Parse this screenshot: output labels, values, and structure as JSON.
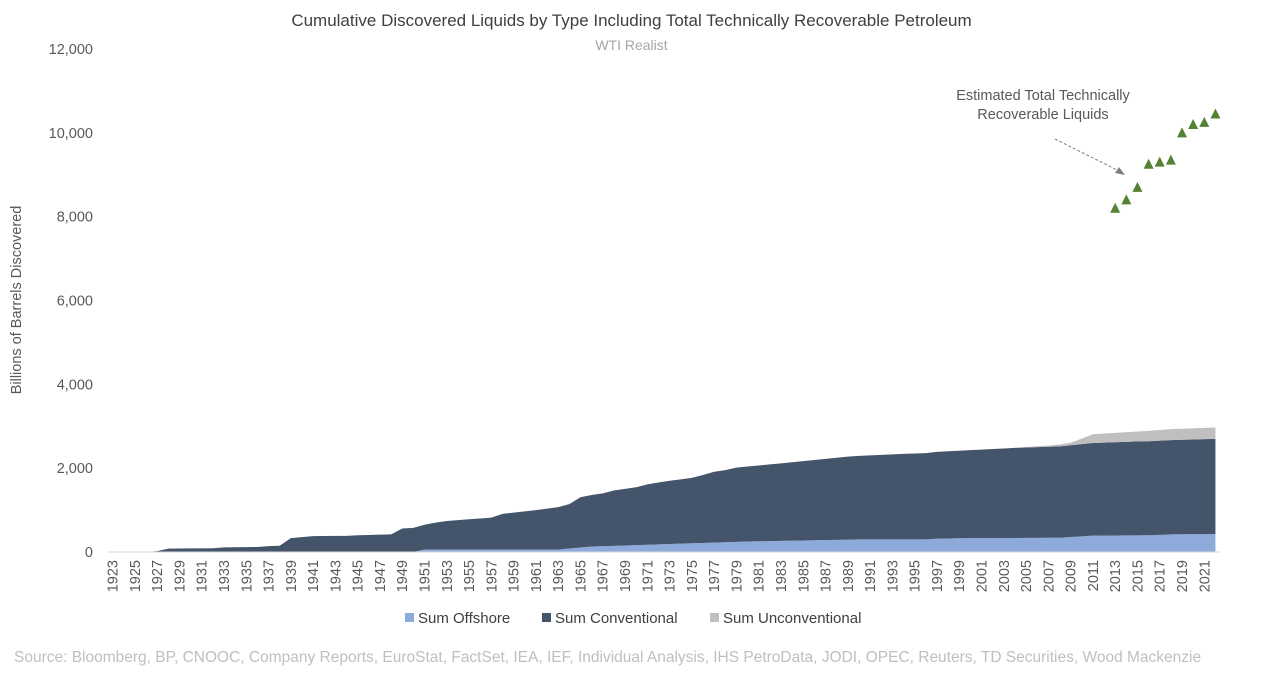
{
  "chart_data": {
    "type": "area",
    "stacked": true,
    "title": "Cumulative Discovered Liquids by Type Including Total Technically Recoverable Petroleum",
    "subtitle": "WTI Realist",
    "ylabel": "Billions of Barrels Discovered",
    "xlabel": "",
    "ylim": [
      0,
      12000
    ],
    "y_ticks": [
      "0",
      "2,000",
      "4,000",
      "6,000",
      "8,000",
      "10,000",
      "12,000"
    ],
    "x_start": 1923,
    "x_end": 2022,
    "x_tick_labels": [
      "1923",
      "1925",
      "1927",
      "1929",
      "1931",
      "1933",
      "1935",
      "1937",
      "1939",
      "1941",
      "1943",
      "1945",
      "1947",
      "1949",
      "1951",
      "1953",
      "1955",
      "1957",
      "1959",
      "1961",
      "1963",
      "1965",
      "1967",
      "1969",
      "1971",
      "1973",
      "1975",
      "1977",
      "1979",
      "1981",
      "1983",
      "1985",
      "1987",
      "1989",
      "1991",
      "1993",
      "1995",
      "1997",
      "1999",
      "2001",
      "2003",
      "2005",
      "2007",
      "2009",
      "2011",
      "2013",
      "2015",
      "2017",
      "2019",
      "2021"
    ],
    "grid": false,
    "legend_position": "bottom",
    "series": [
      {
        "name": "Sum Offshore",
        "color": "#8eaadb",
        "keypoints": [
          [
            1923,
            0
          ],
          [
            1950,
            0
          ],
          [
            1951,
            60
          ],
          [
            1963,
            60
          ],
          [
            1966,
            130
          ],
          [
            1970,
            165
          ],
          [
            1980,
            250
          ],
          [
            1990,
            300
          ],
          [
            1996,
            300
          ],
          [
            1997,
            320
          ],
          [
            2000,
            330
          ],
          [
            2008,
            340
          ],
          [
            2011,
            390
          ],
          [
            2016,
            400
          ],
          [
            2018,
            420
          ],
          [
            2022,
            430
          ]
        ]
      },
      {
        "name": "Sum Conventional",
        "color": "#44546a",
        "keypoints": [
          [
            1923,
            0
          ],
          [
            1926,
            0
          ],
          [
            1927,
            20
          ],
          [
            1928,
            80
          ],
          [
            1932,
            90
          ],
          [
            1933,
            110
          ],
          [
            1936,
            120
          ],
          [
            1937,
            140
          ],
          [
            1938,
            150
          ],
          [
            1939,
            330
          ],
          [
            1941,
            380
          ],
          [
            1944,
            385
          ],
          [
            1945,
            400
          ],
          [
            1948,
            420
          ],
          [
            1949,
            560
          ],
          [
            1951,
            590
          ],
          [
            1952,
            640
          ],
          [
            1953,
            680
          ],
          [
            1957,
            760
          ],
          [
            1958,
            850
          ],
          [
            1961,
            940
          ],
          [
            1963,
            1010
          ],
          [
            1964,
            1060
          ],
          [
            1965,
            1200
          ],
          [
            1967,
            1260
          ],
          [
            1968,
            1320
          ],
          [
            1970,
            1380
          ],
          [
            1971,
            1440
          ],
          [
            1973,
            1510
          ],
          [
            1975,
            1560
          ],
          [
            1976,
            1620
          ],
          [
            1977,
            1690
          ],
          [
            1978,
            1720
          ],
          [
            1979,
            1770
          ],
          [
            1983,
            1850
          ],
          [
            1989,
            1980
          ],
          [
            1993,
            2030
          ],
          [
            1995,
            2050
          ],
          [
            1999,
            2090
          ],
          [
            2001,
            2110
          ],
          [
            2004,
            2150
          ],
          [
            2008,
            2180
          ],
          [
            2011,
            2210
          ],
          [
            2015,
            2240
          ],
          [
            2018,
            2250
          ],
          [
            2022,
            2270
          ]
        ]
      },
      {
        "name": "Sum Unconventional",
        "color": "#bfbfbf",
        "keypoints": [
          [
            1923,
            0
          ],
          [
            2004,
            0
          ],
          [
            2007,
            30
          ],
          [
            2009,
            60
          ],
          [
            2010,
            130
          ],
          [
            2011,
            210
          ],
          [
            2014,
            230
          ],
          [
            2018,
            260
          ],
          [
            2022,
            270
          ]
        ]
      }
    ],
    "scatter": {
      "name": "Estimated Total Technically Recoverable Liquids",
      "color": "#548235",
      "x": [
        2013,
        2014,
        2015,
        2016,
        2017,
        2018,
        2019,
        2020,
        2021,
        2022
      ],
      "y": [
        8200,
        8400,
        8700,
        9250,
        9300,
        9350,
        10000,
        10200,
        10250,
        10450
      ]
    },
    "annotation": {
      "line1": "Estimated Total Technically",
      "line2": "Recoverable Liquids"
    },
    "source": "Source: Bloomberg, BP, CNOOC, Company Reports, EuroStat, FactSet, IEA, IEF, Individual Analysis, IHS PetroData, JODI, OPEC, Reuters, TD Securities, Wood Mackenzie"
  }
}
